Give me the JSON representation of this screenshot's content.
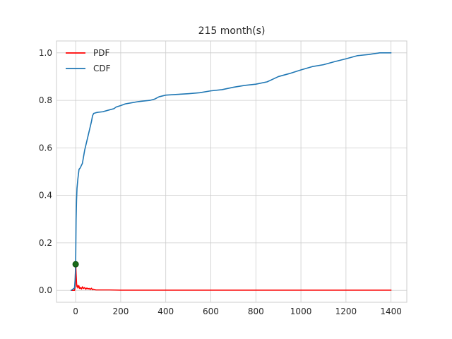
{
  "chart_data": {
    "type": "line",
    "title": "215 month(s)",
    "xlabel": "",
    "ylabel": "",
    "xlim": [
      -85,
      1470
    ],
    "ylim": [
      -0.05,
      1.05
    ],
    "x_ticks": [
      0,
      200,
      400,
      600,
      800,
      1000,
      1200,
      1400
    ],
    "y_ticks": [
      0.0,
      0.2,
      0.4,
      0.6,
      0.8,
      1.0
    ],
    "x_tick_labels": [
      "0",
      "200",
      "400",
      "600",
      "800",
      "1000",
      "1200",
      "1400"
    ],
    "y_tick_labels": [
      "0.0",
      "0.2",
      "0.4",
      "0.6",
      "0.8",
      "1.0"
    ],
    "grid": true,
    "legend_position": "top-left",
    "series": [
      {
        "name": "PDF",
        "color": "#ff0000",
        "x": [
          -20,
          -5,
          -2,
          0,
          2,
          4,
          6,
          8,
          10,
          14,
          18,
          22,
          26,
          30,
          35,
          40,
          45,
          50,
          55,
          60,
          65,
          70,
          75,
          80,
          90,
          100,
          150,
          200,
          300,
          400,
          500,
          600,
          700,
          800,
          900,
          1000,
          1100,
          1200,
          1300,
          1400
        ],
        "y": [
          0.0,
          0.0,
          0.02,
          0.12,
          0.07,
          0.03,
          0.015,
          0.02,
          0.01,
          0.02,
          0.008,
          0.012,
          0.006,
          0.015,
          0.008,
          0.012,
          0.005,
          0.01,
          0.006,
          0.008,
          0.004,
          0.009,
          0.003,
          0.005,
          0.002,
          0.002,
          0.002,
          0.001,
          0.001,
          0.001,
          0.001,
          0.001,
          0.001,
          0.001,
          0.001,
          0.001,
          0.001,
          0.001,
          0.001,
          0.001
        ]
      },
      {
        "name": "CDF",
        "color": "#1f77b4",
        "x": [
          -20,
          -5,
          -2,
          0,
          2,
          4,
          6,
          10,
          15,
          20,
          25,
          30,
          40,
          50,
          60,
          70,
          75,
          80,
          90,
          100,
          120,
          150,
          170,
          180,
          200,
          220,
          250,
          280,
          300,
          330,
          350,
          370,
          400,
          450,
          500,
          550,
          600,
          650,
          700,
          750,
          800,
          850,
          900,
          950,
          1000,
          1050,
          1100,
          1150,
          1200,
          1250,
          1300,
          1350,
          1400
        ],
        "y": [
          0.0,
          0.01,
          0.05,
          0.11,
          0.3,
          0.38,
          0.43,
          0.47,
          0.51,
          0.515,
          0.525,
          0.535,
          0.59,
          0.63,
          0.67,
          0.71,
          0.735,
          0.745,
          0.748,
          0.75,
          0.752,
          0.76,
          0.765,
          0.772,
          0.778,
          0.785,
          0.79,
          0.795,
          0.797,
          0.8,
          0.805,
          0.815,
          0.822,
          0.825,
          0.828,
          0.832,
          0.84,
          0.845,
          0.855,
          0.863,
          0.868,
          0.878,
          0.9,
          0.913,
          0.928,
          0.942,
          0.95,
          0.963,
          0.975,
          0.988,
          0.993,
          1.0,
          1.0
        ]
      }
    ],
    "markers": [
      {
        "x": 0,
        "y": 0.11,
        "color": "#1a6b1a"
      }
    ]
  }
}
